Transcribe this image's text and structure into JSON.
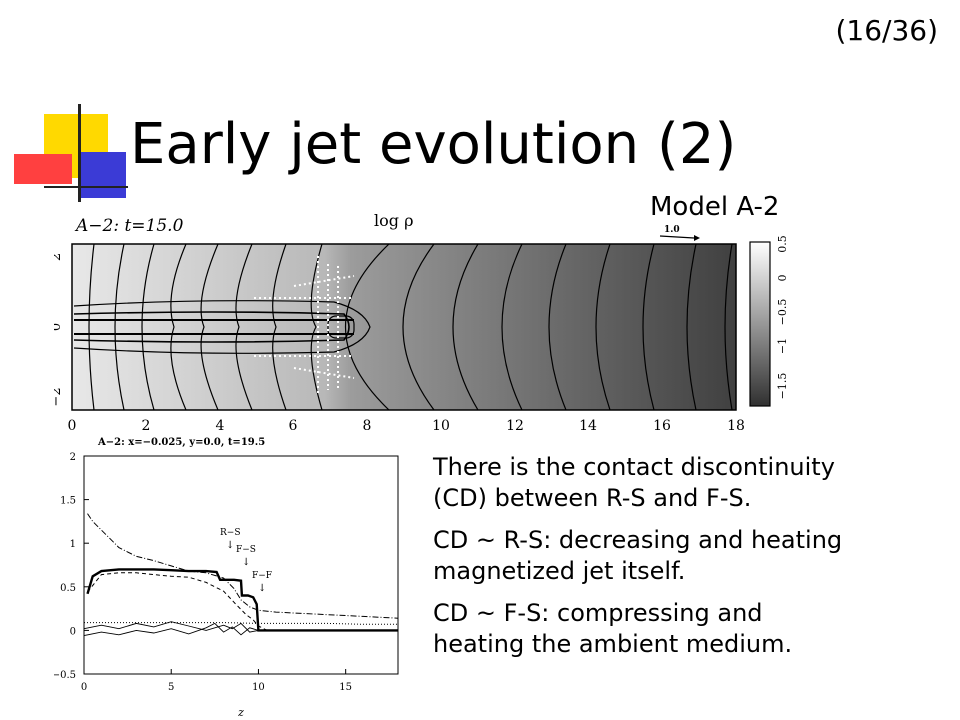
{
  "slide": {
    "number": "(16/36)",
    "title": "Early jet evolution (2)",
    "model_label": "Model A-2",
    "paragraphs": [
      {
        "line1": "There is the contact discontinuity",
        "line2": "(CD) between R-S and F-S."
      },
      {
        "line1": "CD ~ R-S: decreasing and heating",
        "line2": "magnetized jet itself."
      },
      {
        "line1": "CD ~ F-S: compressing and",
        "line2": "heating the ambient medium."
      }
    ]
  },
  "top_plot": {
    "label": "A−2:  t=15.0",
    "quantity": "log ρ",
    "y_axis_label": "x",
    "arrow_label": "1.0",
    "x_ticks": [
      "0",
      "2",
      "4",
      "6",
      "8",
      "10",
      "12",
      "14",
      "16",
      "18"
    ],
    "y_ticks": [
      "2",
      "0",
      "−2"
    ],
    "colorbar_ticks": [
      "0.5",
      "0",
      "−0.5",
      "−1",
      "−1.5"
    ]
  },
  "chart_data": {
    "type": "line",
    "title": "A−2: x=−0.025, y=0.0, t=19.5",
    "xlabel": "z",
    "ylabel": "",
    "xlim": [
      0,
      18
    ],
    "ylim": [
      -0.5,
      2
    ],
    "x_ticks": [
      "0",
      "5",
      "10",
      "15"
    ],
    "y_ticks": [
      "2",
      "1.5",
      "1",
      "0.5",
      "0",
      "−0.5"
    ],
    "annotations": [
      "R−S",
      "F−S",
      "F−F"
    ],
    "series": [
      {
        "style": "thick-solid",
        "x": [
          0.2,
          0.5,
          1,
          2,
          3,
          4,
          5,
          6,
          7,
          7.6,
          7.8,
          8.2,
          8.6,
          9.0,
          9.05,
          9.4,
          9.7,
          9.9,
          10,
          10.5,
          14,
          18
        ],
        "y": [
          0.42,
          0.62,
          0.68,
          0.7,
          0.7,
          0.7,
          0.69,
          0.68,
          0.68,
          0.67,
          0.58,
          0.58,
          0.58,
          0.57,
          0.4,
          0.4,
          0.38,
          0.3,
          0.0,
          0.0,
          0.0,
          0.0
        ]
      },
      {
        "style": "dash-dot",
        "x": [
          0.2,
          0.5,
          1,
          1.5,
          2,
          3,
          4,
          5,
          6,
          7,
          8,
          8.6,
          9,
          9.5,
          10,
          11,
          12,
          14,
          16,
          18
        ],
        "y": [
          1.34,
          1.25,
          1.15,
          1.05,
          0.95,
          0.85,
          0.8,
          0.74,
          0.68,
          0.66,
          0.6,
          0.48,
          0.35,
          0.27,
          0.23,
          0.21,
          0.2,
          0.18,
          0.16,
          0.14
        ]
      },
      {
        "style": "dashed",
        "x": [
          0.2,
          1,
          2,
          3,
          4,
          5,
          6,
          7,
          8,
          8.7,
          9.3,
          9.7,
          10,
          10.5,
          14,
          18
        ],
        "y": [
          0.44,
          0.64,
          0.66,
          0.66,
          0.64,
          0.62,
          0.61,
          0.55,
          0.45,
          0.3,
          0.18,
          0.12,
          0.05,
          0.0,
          0.0,
          0.0
        ]
      },
      {
        "style": "dotted",
        "x": [
          0,
          2,
          4,
          6,
          8,
          10,
          12,
          14,
          16,
          18
        ],
        "y": [
          0.09,
          0.09,
          0.09,
          0.09,
          0.09,
          0.08,
          0.08,
          0.08,
          0.07,
          0.07
        ]
      },
      {
        "style": "thin-solid",
        "x": [
          0,
          1,
          2,
          3,
          4,
          5,
          6,
          7,
          7.5,
          8,
          8.5,
          9,
          9.5,
          10,
          10.5,
          14,
          18
        ],
        "y": [
          -0.06,
          -0.02,
          -0.05,
          0.0,
          -0.03,
          0.02,
          -0.04,
          0.03,
          0.08,
          -0.02,
          0.04,
          -0.05,
          0.03,
          0.0,
          0.0,
          0.0,
          0.0
        ]
      },
      {
        "style": "thin-solid-2",
        "x": [
          0,
          1,
          2,
          3,
          4,
          5,
          6,
          7,
          8,
          8.5,
          9,
          9.5,
          10,
          10.5,
          14,
          18
        ],
        "y": [
          0.02,
          0.06,
          0.02,
          0.08,
          0.04,
          0.1,
          0.05,
          0.0,
          0.06,
          0.02,
          0.08,
          -0.02,
          0.0,
          0.0,
          0.0,
          0.0
        ]
      }
    ]
  }
}
